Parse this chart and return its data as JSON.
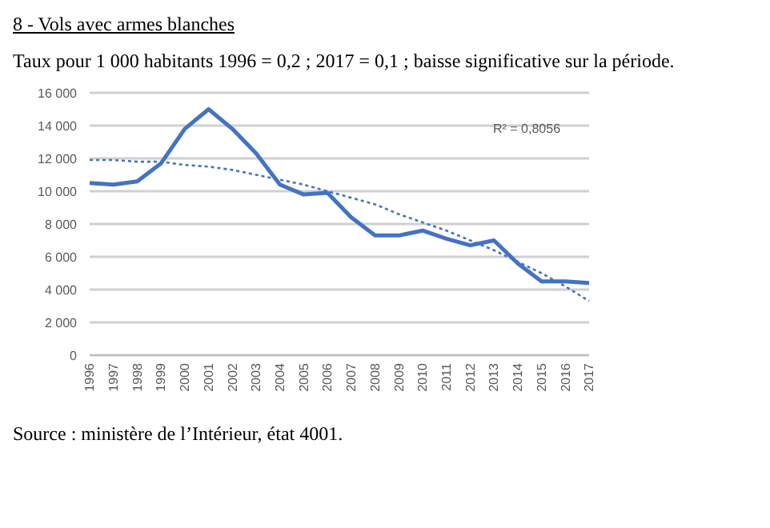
{
  "chart_data": {
    "type": "line",
    "title": "8 - Vols avec armes blanches",
    "subtitle": "Taux pour 1 000 habitants 1996 = 0,2 ; 2017 = 0,1 ; baisse significative sur la période.",
    "categories": [
      "1996",
      "1997",
      "1998",
      "1999",
      "2000",
      "2001",
      "2002",
      "2003",
      "2004",
      "2005",
      "2006",
      "2007",
      "2008",
      "2009",
      "2010",
      "2011",
      "2012",
      "2013",
      "2014",
      "2015",
      "2016",
      "2017"
    ],
    "series": [
      {
        "color": "#4472c4",
        "line_style": "solid",
        "values": [
          10500,
          10400,
          10600,
          11700,
          13800,
          15000,
          13800,
          12300,
          10400,
          9800,
          9900,
          8400,
          7300,
          7300,
          7600,
          7100,
          6700,
          7000,
          5600,
          4500,
          4500,
          4400
        ]
      },
      {
        "color": "#4472c4",
        "line_style": "dotted",
        "values": [
          11900,
          11900,
          11800,
          11800,
          11600,
          11500,
          11300,
          11000,
          10700,
          10400,
          10000,
          9600,
          9200,
          8600,
          8100,
          7600,
          7000,
          6400,
          5700,
          5000,
          4200,
          3300
        ]
      }
    ],
    "ylim": [
      0,
      16000
    ],
    "yticks": [
      {
        "value": 0,
        "label": "0"
      },
      {
        "value": 2000,
        "label": "2 000"
      },
      {
        "value": 4000,
        "label": "4 000"
      },
      {
        "value": 6000,
        "label": "6 000"
      },
      {
        "value": 8000,
        "label": "8 000"
      },
      {
        "value": 10000,
        "label": "10 000"
      },
      {
        "value": 12000,
        "label": "12 000"
      },
      {
        "value": 14000,
        "label": "14 000"
      },
      {
        "value": 16000,
        "label": "16 000"
      }
    ],
    "grid": "y",
    "marker": "none",
    "legend": false,
    "annotations": [
      "R² = 0,8056",
      "Source : ministère de l’Intérieur, état 4001."
    ]
  }
}
